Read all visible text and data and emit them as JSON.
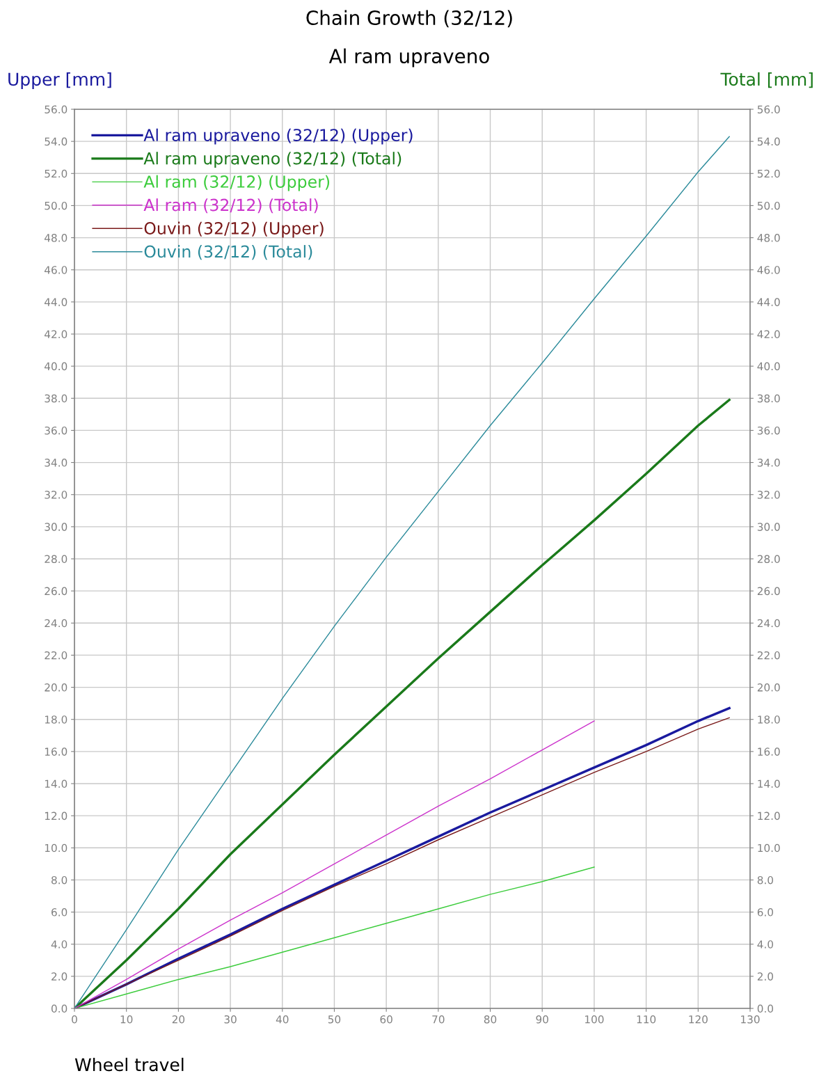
{
  "chart_data": {
    "type": "line",
    "title": "Chain Growth (32/12)",
    "subtitle": "Al ram upraveno",
    "xlabel": "Wheel travel",
    "ylabel": "Upper [mm]",
    "y2label": "Total [mm]",
    "xlim": [
      0,
      130
    ],
    "xticks": [
      0,
      10,
      20,
      30,
      40,
      50,
      60,
      70,
      80,
      90,
      100,
      110,
      120,
      130
    ],
    "ylim": [
      0,
      56
    ],
    "yticks": [
      {
        "value": 0,
        "label": "0.0"
      },
      {
        "value": 2,
        "label": "2.0"
      },
      {
        "value": 4,
        "label": "4.0"
      },
      {
        "value": 6,
        "label": "6.0"
      },
      {
        "value": 8,
        "label": "8.0"
      },
      {
        "value": 10,
        "label": "10.0"
      },
      {
        "value": 12,
        "label": "12.0"
      },
      {
        "value": 14,
        "label": "14.0"
      },
      {
        "value": 16,
        "label": "16.0"
      },
      {
        "value": 18,
        "label": "18.0"
      },
      {
        "value": 20,
        "label": "20.0"
      },
      {
        "value": 22,
        "label": "22.0"
      },
      {
        "value": 24,
        "label": "24.0"
      },
      {
        "value": 26,
        "label": "26.0"
      },
      {
        "value": 28,
        "label": "28.0"
      },
      {
        "value": 30,
        "label": "30.0"
      },
      {
        "value": 32,
        "label": "32.0"
      },
      {
        "value": 34,
        "label": "34.0"
      },
      {
        "value": 36,
        "label": "36.0"
      },
      {
        "value": 38,
        "label": "38.0"
      },
      {
        "value": 40,
        "label": "40.0"
      },
      {
        "value": 42,
        "label": "42.0"
      },
      {
        "value": 44,
        "label": "44.0"
      },
      {
        "value": 46,
        "label": "46.0"
      },
      {
        "value": 48,
        "label": "48.0"
      },
      {
        "value": 50,
        "label": "50.0"
      },
      {
        "value": 52,
        "label": "52.0"
      },
      {
        "value": 54,
        "label": "54.0"
      },
      {
        "value": 56,
        "label": "56.0"
      }
    ],
    "y2lim": [
      0,
      56
    ],
    "y2ticks": [
      {
        "value": 0,
        "label": "0.0"
      },
      {
        "value": 2,
        "label": "2.0"
      },
      {
        "value": 4,
        "label": "4.0"
      },
      {
        "value": 6,
        "label": "6.0"
      },
      {
        "value": 8,
        "label": "8.0"
      },
      {
        "value": 10,
        "label": "10.0"
      },
      {
        "value": 12,
        "label": "12.0"
      },
      {
        "value": 14,
        "label": "14.0"
      },
      {
        "value": 16,
        "label": "16.0"
      },
      {
        "value": 18,
        "label": "18.0"
      },
      {
        "value": 20,
        "label": "20.0"
      },
      {
        "value": 22,
        "label": "22.0"
      },
      {
        "value": 24,
        "label": "24.0"
      },
      {
        "value": 26,
        "label": "26.0"
      },
      {
        "value": 28,
        "label": "28.0"
      },
      {
        "value": 30,
        "label": "30.0"
      },
      {
        "value": 32,
        "label": "32.0"
      },
      {
        "value": 34,
        "label": "34.0"
      },
      {
        "value": 36,
        "label": "36.0"
      },
      {
        "value": 38,
        "label": "38.0"
      },
      {
        "value": 40,
        "label": "40.0"
      },
      {
        "value": 42,
        "label": "42.0"
      },
      {
        "value": 44,
        "label": "44.0"
      },
      {
        "value": 46,
        "label": "46.0"
      },
      {
        "value": 48,
        "label": "48.0"
      },
      {
        "value": 50,
        "label": "50.0"
      },
      {
        "value": 52,
        "label": "52.0"
      },
      {
        "value": 54,
        "label": "54.0"
      },
      {
        "value": 56,
        "label": "56.0"
      }
    ],
    "grid": true,
    "legend": "top left",
    "line_style": "solid",
    "series": [
      {
        "name": "Al ram upraveno (32/12) (Upper)",
        "color": "#1a1a9e",
        "x": [
          0,
          10,
          20,
          30,
          40,
          50,
          60,
          70,
          80,
          90,
          100,
          110,
          120,
          126
        ],
        "values": [
          0,
          1.5,
          3.1,
          4.6,
          6.2,
          7.7,
          9.2,
          10.7,
          12.2,
          13.6,
          15.0,
          16.4,
          17.9,
          18.7
        ]
      },
      {
        "name": "Al ram upraveno (32/12) (Total)",
        "color": "#1a7a1a",
        "axis": "y2",
        "x": [
          0,
          10,
          20,
          30,
          40,
          50,
          60,
          70,
          80,
          90,
          100,
          110,
          120,
          126
        ],
        "values": [
          0,
          3.0,
          6.2,
          9.6,
          12.7,
          15.8,
          18.8,
          21.8,
          24.7,
          27.6,
          30.4,
          33.3,
          36.3,
          37.9
        ]
      },
      {
        "name": "Al ram (32/12) (Upper)",
        "color": "#3ccc3c",
        "x": [
          0,
          10,
          20,
          30,
          40,
          50,
          60,
          70,
          80,
          90,
          100
        ],
        "values": [
          0,
          0.9,
          1.8,
          2.6,
          3.5,
          4.4,
          5.3,
          6.2,
          7.1,
          7.9,
          8.8
        ]
      },
      {
        "name": "Al ram (32/12) (Total)",
        "color": "#cc33cc",
        "axis": "y2",
        "x": [
          0,
          10,
          20,
          30,
          40,
          50,
          60,
          70,
          80,
          90,
          100
        ],
        "values": [
          0,
          1.8,
          3.7,
          5.5,
          7.2,
          9.0,
          10.8,
          12.6,
          14.3,
          16.1,
          17.9
        ]
      },
      {
        "name": "Ouvin (32/12) (Upper)",
        "color": "#7a1a1a",
        "x": [
          0,
          10,
          20,
          30,
          40,
          50,
          60,
          70,
          80,
          90,
          100,
          110,
          120,
          126
        ],
        "values": [
          0,
          1.5,
          3.0,
          4.5,
          6.1,
          7.6,
          9.0,
          10.5,
          11.9,
          13.3,
          14.7,
          16.0,
          17.4,
          18.1
        ]
      },
      {
        "name": "Ouvin (32/12) (Total)",
        "color": "#2a8a9a",
        "axis": "y2",
        "x": [
          0,
          10,
          20,
          30,
          40,
          50,
          60,
          70,
          80,
          90,
          100,
          110,
          120,
          126
        ],
        "values": [
          0,
          4.9,
          9.9,
          14.6,
          19.3,
          23.8,
          28.1,
          32.2,
          36.3,
          40.2,
          44.2,
          48.1,
          52.1,
          54.3
        ]
      }
    ]
  }
}
